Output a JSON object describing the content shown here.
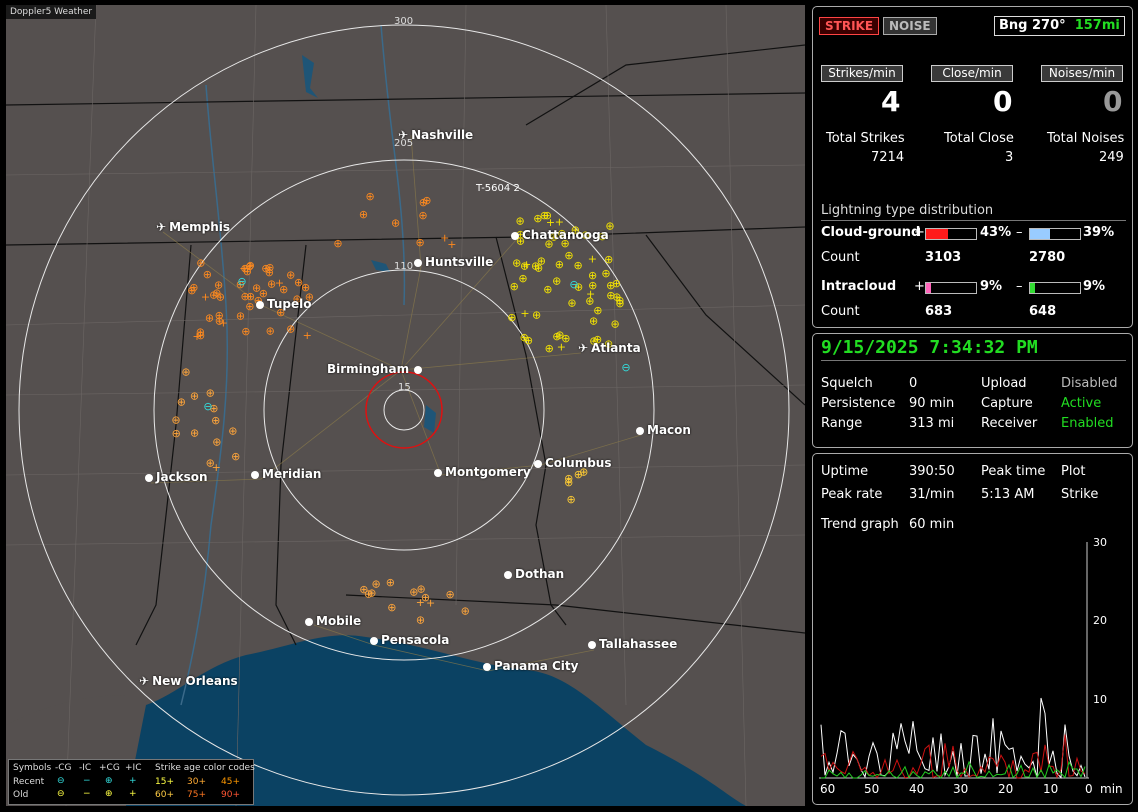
{
  "app": {
    "title": "Doppler5 Weather"
  },
  "map": {
    "cities": [
      {
        "name": "Nashville",
        "marker": "airport-icon"
      },
      {
        "name": "Memphis",
        "marker": "airport-icon"
      },
      {
        "name": "Chattanooga",
        "marker": "dot"
      },
      {
        "name": "Huntsville",
        "marker": "dot"
      },
      {
        "name": "Tupelo",
        "marker": "dot"
      },
      {
        "name": "Atlanta",
        "marker": "airport-icon"
      },
      {
        "name": "Birmingham",
        "marker": "dot"
      },
      {
        "name": "Macon",
        "marker": "dot"
      },
      {
        "name": "Jackson",
        "marker": "dot"
      },
      {
        "name": "Meridian",
        "marker": "dot"
      },
      {
        "name": "Montgomery",
        "marker": "dot"
      },
      {
        "name": "Columbus",
        "marker": "dot"
      },
      {
        "name": "Dothan",
        "marker": "dot"
      },
      {
        "name": "Mobile",
        "marker": "dot"
      },
      {
        "name": "Pensacola",
        "marker": "dot"
      },
      {
        "name": "Tallahassee",
        "marker": "dot"
      },
      {
        "name": "Panama City",
        "marker": "dot"
      },
      {
        "name": "New Orleans",
        "marker": "airport-icon"
      }
    ],
    "range_labels": [
      "300",
      "205",
      "110",
      "15"
    ],
    "storm_tag": "T-5604",
    "storm_tag_count": "2"
  },
  "legend": {
    "symbols_label": "Symbols",
    "col_headers": [
      "-CG",
      "-IC",
      "+CG",
      "+IC"
    ],
    "recent_label": "Recent",
    "old_label": "Old",
    "age_title": "Strike age color codes",
    "recent_ages": [
      "15+",
      "30+",
      "45+"
    ],
    "old_ages": [
      "60+",
      "75+",
      "90+"
    ],
    "age_colors": {
      "15": "#ffff44",
      "30": "#ffaa33",
      "45": "#ff9900",
      "60": "#ffcc44",
      "75": "#ff7722",
      "90": "#ff5533"
    }
  },
  "status": {
    "strike_label": "STRIKE",
    "noise_label": "NOISE",
    "bearing_text": "Bng 270°",
    "bearing_distance": "157mi",
    "strikes_per_min_label": "Strikes/min",
    "close_per_min_label": "Close/min",
    "noises_per_min_label": "Noises/min",
    "strikes_per_min": "4",
    "close_per_min": "0",
    "noises_per_min": "0",
    "total_strikes_label": "Total Strikes",
    "total_close_label": "Total Close",
    "total_noises_label": "Total Noises",
    "total_strikes": "7214",
    "total_close": "3",
    "total_noises": "249",
    "dist_title": "Lightning type distribution",
    "cg_label": "Cloud-ground",
    "ic_label": "Intracloud",
    "count_label": "Count",
    "cg_pos_pct": "43%",
    "cg_neg_pct": "39%",
    "ic_pos_pct": "9%",
    "ic_neg_pct": "9%",
    "cg_pos_count": "3103",
    "cg_neg_count": "2780",
    "ic_pos_count": "683",
    "ic_neg_count": "648",
    "plus": "+",
    "minus": "–",
    "bar_fill": {
      "cg_pos": 0.43,
      "cg_neg": 0.39,
      "ic_pos": 0.09,
      "ic_neg": 0.09
    },
    "colors": {
      "cg_pos": "#ff1a1a",
      "cg_neg": "#99ccff",
      "ic_pos": "#ff66bb",
      "ic_neg": "#33dd33"
    }
  },
  "info": {
    "datetime": "9/15/2025 7:34:32 PM",
    "squelch_label": "Squelch",
    "squelch": "0",
    "upload_label": "Upload",
    "upload": "Disabled",
    "persistence_label": "Persistence",
    "persistence": "90 min",
    "capture_label": "Capture",
    "capture": "Active",
    "range_label": "Range",
    "range": "313 mi",
    "receiver_label": "Receiver",
    "receiver": "Enabled"
  },
  "trend": {
    "uptime_label": "Uptime",
    "uptime": "390:50",
    "peak_time_label": "Peak time",
    "peak_time": "5:13 AM",
    "plot_label": "Plot",
    "plot": "Strike",
    "peak_rate_label": "Peak rate",
    "peak_rate": "31/min",
    "trend_graph_label": "Trend graph",
    "trend_graph": "60 min",
    "y_ticks": [
      "30",
      "20",
      "10"
    ],
    "x_ticks": [
      "60",
      "50",
      "40",
      "30",
      "20",
      "10",
      "0"
    ],
    "x_unit": "min"
  }
}
